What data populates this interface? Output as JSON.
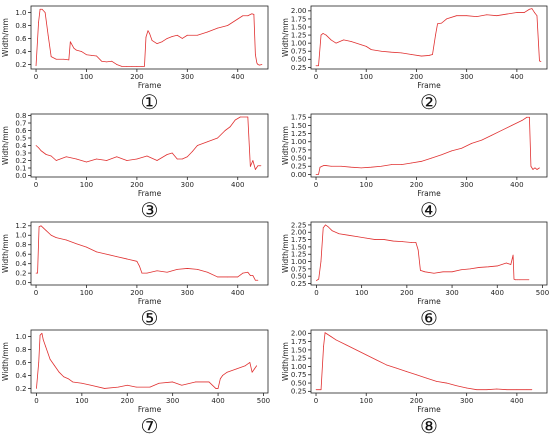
{
  "line_color": "#e03030",
  "chart_data": [
    {
      "type": "line",
      "marker": "①",
      "xlabel": "Frame",
      "ylabel": "Width/mm",
      "xlim": [
        -10,
        460
      ],
      "ylim": [
        0.13,
        1.1
      ],
      "xticks": [
        0,
        100,
        200,
        300,
        400
      ],
      "yticks": [
        0.2,
        0.4,
        0.6,
        0.8,
        1.0
      ],
      "ytick_labels": [
        "0.2",
        "0.4",
        "0.6",
        "0.8",
        "1.0"
      ],
      "series": [
        {
          "x": [
            0,
            5,
            8,
            12,
            18,
            24,
            30,
            40,
            55,
            65,
            68,
            75,
            80,
            90,
            100,
            110,
            120,
            130,
            140,
            150,
            160,
            170,
            180,
            190,
            200,
            210,
            215,
            218,
            222,
            225,
            230,
            240,
            250,
            260,
            270,
            280,
            290,
            300,
            320,
            340,
            360,
            380,
            400,
            410,
            420,
            428,
            432,
            435,
            438,
            440,
            443,
            448
          ],
          "y": [
            0.18,
            0.85,
            1.05,
            1.05,
            1.0,
            0.65,
            0.32,
            0.28,
            0.28,
            0.27,
            0.55,
            0.45,
            0.42,
            0.4,
            0.35,
            0.34,
            0.33,
            0.25,
            0.24,
            0.25,
            0.2,
            0.17,
            0.17,
            0.17,
            0.17,
            0.17,
            0.17,
            0.62,
            0.72,
            0.68,
            0.57,
            0.52,
            0.55,
            0.6,
            0.63,
            0.65,
            0.6,
            0.65,
            0.65,
            0.7,
            0.76,
            0.8,
            0.9,
            0.95,
            0.95,
            0.98,
            0.97,
            0.35,
            0.22,
            0.2,
            0.19,
            0.2
          ]
        }
      ]
    },
    {
      "type": "line",
      "marker": "②",
      "xlabel": "Frame",
      "ylabel": "Width/mm",
      "xlim": [
        -10,
        460
      ],
      "ylim": [
        0.2,
        2.15
      ],
      "xticks": [
        0,
        100,
        200,
        300,
        400
      ],
      "yticks": [
        0.25,
        0.5,
        0.75,
        1.0,
        1.25,
        1.5,
        1.75,
        2.0
      ],
      "ytick_labels": [
        "0.25",
        "0.50",
        "0.75",
        "1.00",
        "1.25",
        "1.50",
        "1.75",
        "2.00"
      ],
      "series": [
        {
          "x": [
            0,
            5,
            10,
            14,
            20,
            30,
            40,
            55,
            70,
            90,
            100,
            110,
            130,
            150,
            170,
            190,
            210,
            225,
            232,
            238,
            242,
            250,
            260,
            280,
            300,
            320,
            340,
            360,
            380,
            400,
            415,
            425,
            430,
            435,
            440,
            445,
            448
          ],
          "y": [
            0.3,
            0.3,
            1.25,
            1.3,
            1.25,
            1.1,
            1.0,
            1.1,
            1.05,
            0.95,
            0.9,
            0.8,
            0.75,
            0.72,
            0.7,
            0.65,
            0.6,
            0.62,
            0.65,
            1.25,
            1.6,
            1.62,
            1.75,
            1.85,
            1.85,
            1.82,
            1.88,
            1.85,
            1.9,
            1.95,
            1.95,
            2.05,
            2.07,
            1.95,
            1.85,
            0.45,
            0.43
          ]
        }
      ]
    },
    {
      "type": "line",
      "marker": "③",
      "xlabel": "Frame",
      "ylabel": "Width/mm",
      "xlim": [
        -10,
        460
      ],
      "ylim": [
        -0.02,
        0.82
      ],
      "xticks": [
        0,
        100,
        200,
        300,
        400
      ],
      "yticks": [
        0.0,
        0.1,
        0.2,
        0.3,
        0.4,
        0.5,
        0.6,
        0.7,
        0.8
      ],
      "ytick_labels": [
        "0.0",
        "0.1",
        "0.2",
        "0.3",
        "0.4",
        "0.5",
        "0.6",
        "0.7",
        "0.8"
      ],
      "series": [
        {
          "x": [
            0,
            5,
            10,
            20,
            30,
            40,
            60,
            80,
            100,
            120,
            140,
            160,
            180,
            200,
            220,
            240,
            260,
            270,
            280,
            290,
            300,
            310,
            320,
            340,
            360,
            375,
            385,
            395,
            405,
            420,
            425,
            430,
            435,
            440,
            443,
            446
          ],
          "y": [
            0.4,
            0.37,
            0.33,
            0.28,
            0.26,
            0.2,
            0.25,
            0.22,
            0.18,
            0.22,
            0.2,
            0.25,
            0.2,
            0.22,
            0.26,
            0.2,
            0.28,
            0.3,
            0.22,
            0.22,
            0.25,
            0.32,
            0.4,
            0.45,
            0.5,
            0.6,
            0.65,
            0.74,
            0.78,
            0.78,
            0.12,
            0.2,
            0.08,
            0.13,
            0.13,
            0.13
          ]
        }
      ]
    },
    {
      "type": "line",
      "marker": "④",
      "xlabel": "Frame",
      "ylabel": "Width/mm",
      "xlim": [
        -10,
        460
      ],
      "ylim": [
        -0.08,
        1.85
      ],
      "xticks": [
        0,
        100,
        200,
        300,
        400
      ],
      "yticks": [
        0.0,
        0.25,
        0.5,
        0.75,
        1.0,
        1.25,
        1.5,
        1.75
      ],
      "ytick_labels": [
        "0.00",
        "0.25",
        "0.50",
        "0.75",
        "1.00",
        "1.25",
        "1.50",
        "1.75"
      ],
      "series": [
        {
          "x": [
            0,
            5,
            8,
            12,
            15,
            20,
            30,
            50,
            70,
            90,
            110,
            130,
            150,
            170,
            190,
            210,
            230,
            250,
            270,
            290,
            310,
            330,
            350,
            370,
            390,
            410,
            420,
            425,
            428,
            432,
            436,
            440,
            445
          ],
          "y": [
            0.0,
            0.0,
            0.22,
            0.25,
            0.27,
            0.27,
            0.25,
            0.25,
            0.22,
            0.2,
            0.22,
            0.25,
            0.3,
            0.3,
            0.35,
            0.4,
            0.5,
            0.6,
            0.72,
            0.8,
            0.95,
            1.05,
            1.2,
            1.35,
            1.5,
            1.65,
            1.75,
            1.75,
            0.25,
            0.15,
            0.2,
            0.15,
            0.2
          ]
        }
      ]
    },
    {
      "type": "line",
      "marker": "⑤",
      "xlabel": "Frame",
      "ylabel": "Width/mm",
      "xlim": [
        -10,
        460
      ],
      "ylim": [
        -0.05,
        1.28
      ],
      "xticks": [
        0,
        100,
        200,
        300,
        400
      ],
      "yticks": [
        0.0,
        0.2,
        0.4,
        0.6,
        0.8,
        1.0,
        1.2
      ],
      "ytick_labels": [
        "0.0",
        "0.2",
        "0.4",
        "0.6",
        "0.8",
        "1.0",
        "1.2"
      ],
      "series": [
        {
          "x": [
            0,
            3,
            6,
            10,
            15,
            20,
            30,
            40,
            60,
            80,
            100,
            120,
            140,
            160,
            180,
            200,
            205,
            210,
            220,
            240,
            260,
            280,
            300,
            320,
            340,
            360,
            380,
            400,
            410,
            420,
            425,
            430,
            435,
            440
          ],
          "y": [
            0.2,
            0.2,
            1.18,
            1.2,
            1.15,
            1.1,
            1.0,
            0.95,
            0.9,
            0.82,
            0.75,
            0.65,
            0.6,
            0.55,
            0.5,
            0.45,
            0.35,
            0.2,
            0.2,
            0.25,
            0.22,
            0.28,
            0.3,
            0.28,
            0.22,
            0.12,
            0.12,
            0.12,
            0.2,
            0.22,
            0.15,
            0.15,
            0.05,
            0.05
          ]
        }
      ]
    },
    {
      "type": "line",
      "marker": "⑥",
      "xlabel": "Frame",
      "ylabel": "Width/mm",
      "xlim": [
        -12,
        510
      ],
      "ylim": [
        0.2,
        2.35
      ],
      "xticks": [
        0,
        100,
        200,
        300,
        400,
        500
      ],
      "yticks": [
        0.25,
        0.5,
        0.75,
        1.0,
        1.25,
        1.5,
        1.75,
        2.0,
        2.25
      ],
      "ytick_labels": [
        "0.25",
        "0.50",
        "0.75",
        "1.00",
        "1.25",
        "1.50",
        "1.75",
        "2.00",
        "2.25"
      ],
      "series": [
        {
          "x": [
            0,
            5,
            10,
            15,
            20,
            25,
            35,
            50,
            70,
            90,
            110,
            130,
            150,
            170,
            190,
            210,
            220,
            225,
            230,
            240,
            260,
            280,
            300,
            320,
            340,
            360,
            380,
            400,
            420,
            430,
            435,
            437,
            440,
            445,
            450,
            470
          ],
          "y": [
            0.35,
            0.4,
            1.0,
            2.15,
            2.25,
            2.2,
            2.05,
            1.95,
            1.9,
            1.85,
            1.8,
            1.75,
            1.75,
            1.7,
            1.68,
            1.65,
            1.65,
            1.4,
            0.7,
            0.65,
            0.6,
            0.65,
            0.65,
            0.72,
            0.75,
            0.8,
            0.82,
            0.85,
            0.95,
            0.9,
            1.22,
            0.4,
            0.38,
            0.38,
            0.38,
            0.38
          ]
        }
      ]
    },
    {
      "type": "line",
      "marker": "⑦",
      "xlabel": "Frame",
      "ylabel": "Width/mm",
      "xlim": [
        -12,
        510
      ],
      "ylim": [
        0.13,
        1.1
      ],
      "xticks": [
        0,
        100,
        200,
        300,
        400,
        500
      ],
      "yticks": [
        0.2,
        0.4,
        0.6,
        0.8,
        1.0
      ],
      "ytick_labels": [
        "0.2",
        "0.4",
        "0.6",
        "0.8",
        "1.0"
      ],
      "series": [
        {
          "x": [
            0,
            5,
            8,
            12,
            15,
            20,
            25,
            30,
            40,
            50,
            60,
            70,
            80,
            100,
            120,
            150,
            180,
            200,
            220,
            250,
            270,
            300,
            320,
            350,
            380,
            395,
            400,
            405,
            410,
            420,
            440,
            460,
            470,
            475,
            480,
            485
          ],
          "y": [
            0.2,
            0.6,
            1.02,
            1.05,
            0.95,
            0.85,
            0.75,
            0.65,
            0.55,
            0.45,
            0.38,
            0.35,
            0.3,
            0.28,
            0.25,
            0.2,
            0.22,
            0.25,
            0.22,
            0.22,
            0.28,
            0.3,
            0.25,
            0.3,
            0.3,
            0.2,
            0.2,
            0.35,
            0.4,
            0.45,
            0.5,
            0.55,
            0.6,
            0.45,
            0.5,
            0.55
          ]
        }
      ]
    },
    {
      "type": "line",
      "marker": "⑧",
      "xlabel": "Frame",
      "ylabel": "Width/mm",
      "xlim": [
        -10,
        460
      ],
      "ylim": [
        0.2,
        2.1
      ],
      "xticks": [
        0,
        100,
        200,
        300,
        400
      ],
      "yticks": [
        0.25,
        0.5,
        0.75,
        1.0,
        1.25,
        1.5,
        1.75,
        2.0
      ],
      "ytick_labels": [
        "0.25",
        "0.50",
        "0.75",
        "1.00",
        "1.25",
        "1.50",
        "1.75",
        "2.00"
      ],
      "series": [
        {
          "x": [
            0,
            10,
            15,
            18,
            22,
            30,
            40,
            60,
            80,
            100,
            120,
            140,
            160,
            180,
            200,
            220,
            240,
            260,
            280,
            300,
            320,
            340,
            360,
            380,
            400,
            420,
            430
          ],
          "y": [
            0.3,
            0.3,
            1.6,
            2.02,
            1.98,
            1.9,
            1.8,
            1.65,
            1.5,
            1.35,
            1.2,
            1.05,
            0.95,
            0.85,
            0.75,
            0.65,
            0.55,
            0.5,
            0.42,
            0.35,
            0.3,
            0.3,
            0.32,
            0.3,
            0.3,
            0.3,
            0.3
          ]
        }
      ]
    }
  ]
}
